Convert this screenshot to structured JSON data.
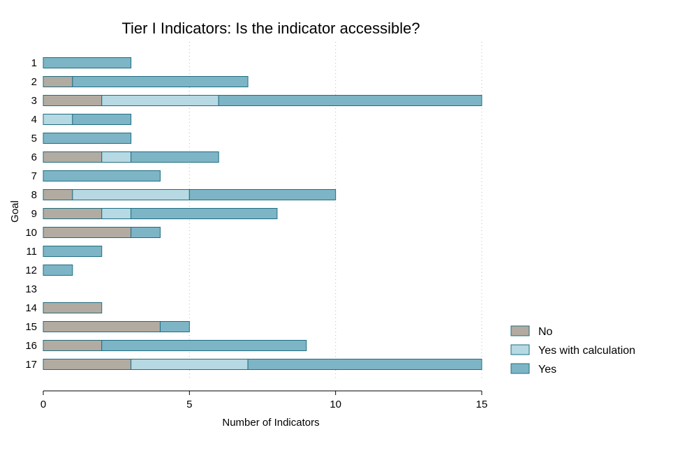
{
  "chart_data": {
    "type": "bar",
    "orientation": "horizontal",
    "stacked": true,
    "title": "Tier I Indicators: Is the indicator accessible?",
    "xlabel": "Number of Indicators",
    "ylabel": "Goal",
    "xlim": [
      0,
      15
    ],
    "xticks": [
      "0",
      "5",
      "10",
      "15"
    ],
    "grid": true,
    "legend_position": "right",
    "categories": [
      "1",
      "2",
      "3",
      "4",
      "5",
      "6",
      "7",
      "8",
      "9",
      "10",
      "11",
      "12",
      "13",
      "14",
      "15",
      "16",
      "17"
    ],
    "series": [
      {
        "name": "No",
        "color": "#b2aba1",
        "values": [
          0,
          1,
          2,
          0,
          0,
          2,
          0,
          1,
          2,
          3,
          0,
          0,
          0,
          2,
          4,
          2,
          3
        ]
      },
      {
        "name": "Yes with calculation",
        "color": "#b6d9e3",
        "values": [
          0,
          0,
          4,
          1,
          0,
          1,
          0,
          4,
          1,
          0,
          0,
          0,
          0,
          0,
          0,
          0,
          4
        ]
      },
      {
        "name": "Yes",
        "color": "#7db5c6",
        "values": [
          3,
          6,
          9,
          2,
          3,
          3,
          4,
          5,
          5,
          1,
          2,
          1,
          0,
          0,
          1,
          7,
          8
        ]
      }
    ],
    "bar_edge_color": "#1f6d80"
  }
}
